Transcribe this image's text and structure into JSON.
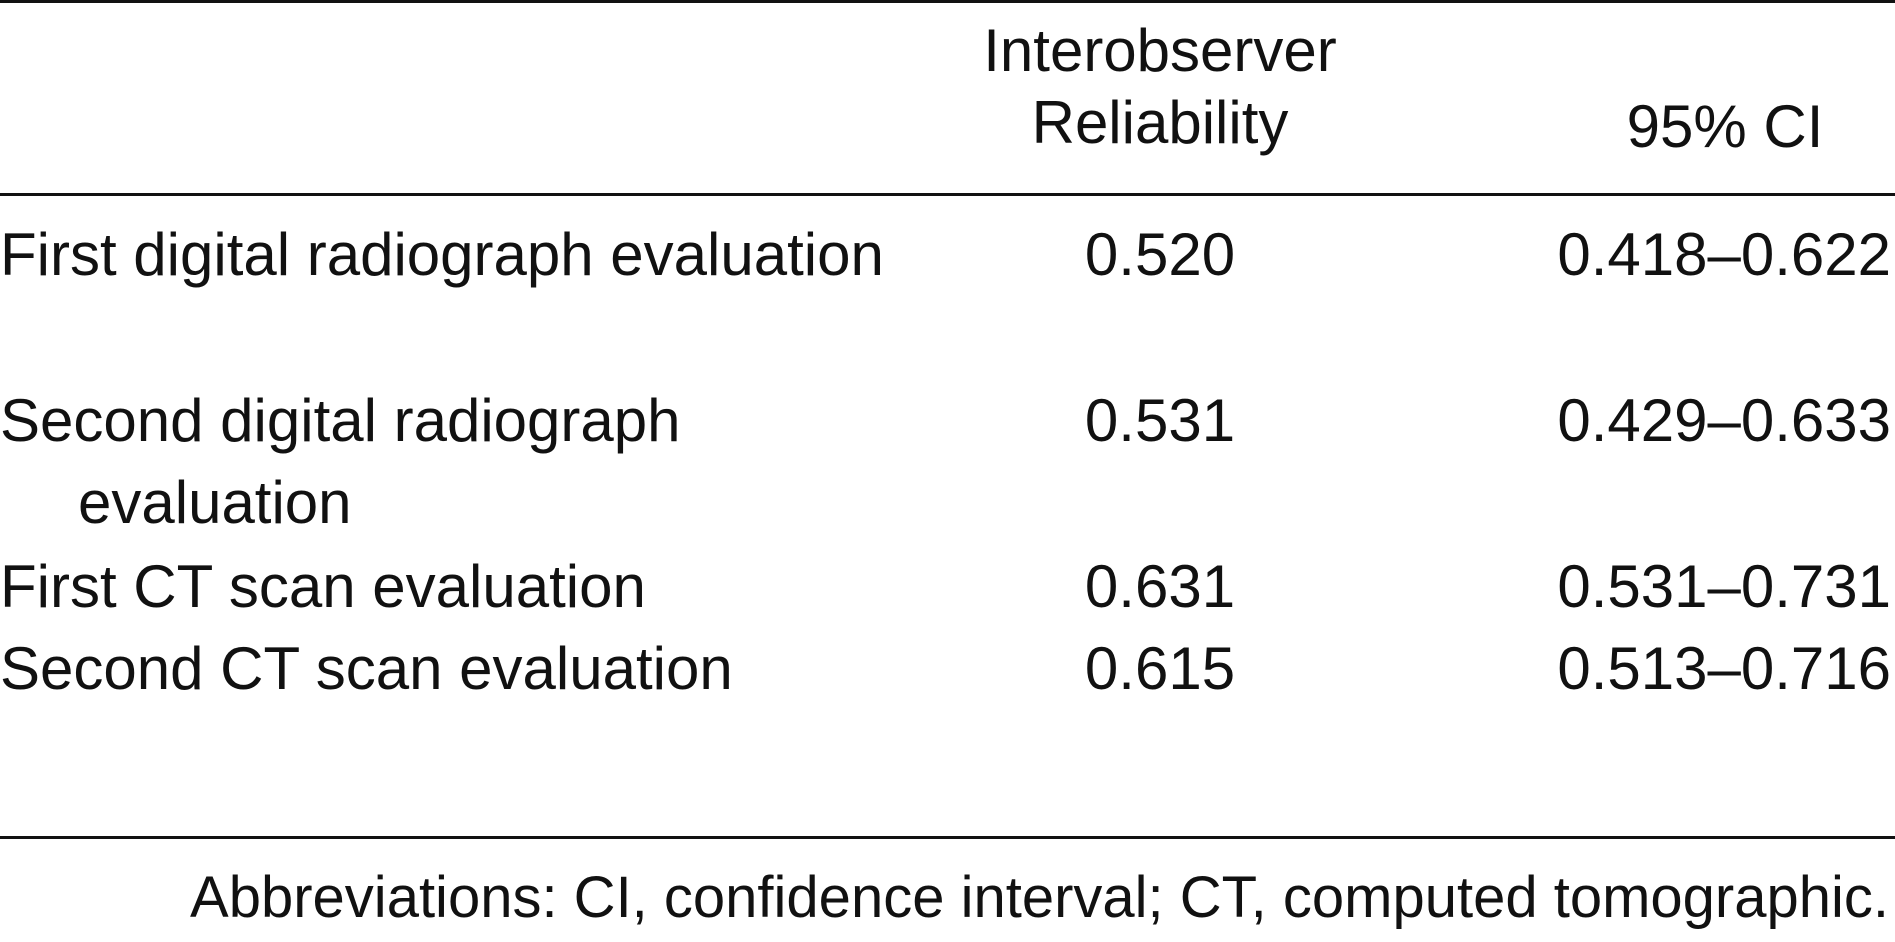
{
  "header": {
    "reliability": "Interobserver Reliability",
    "ci": "95% CI"
  },
  "rows": [
    {
      "label": "First digital radiograph evaluation",
      "reliability": "0.520",
      "ci": "0.418–0.622"
    },
    {
      "label": "Second digital radiograph evaluation",
      "reliability": "0.531",
      "ci": "0.429–0.633"
    },
    {
      "label": "First CT scan evaluation",
      "reliability": "0.631",
      "ci": "0.531–0.731"
    },
    {
      "label": "Second CT scan evaluation",
      "reliability": "0.615",
      "ci": "0.513–0.716"
    }
  ],
  "footnote": "Abbreviations: CI, confidence interval; CT, computed tomographic."
}
